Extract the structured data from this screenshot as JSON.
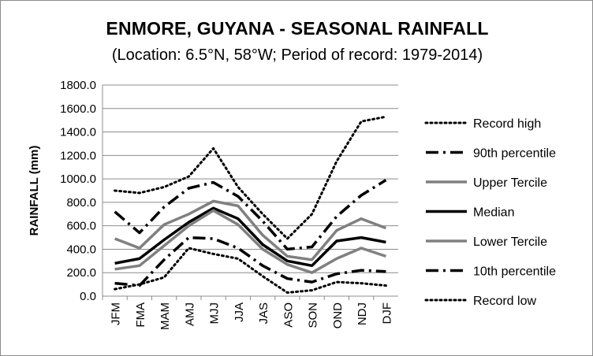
{
  "chart_data": {
    "type": "line",
    "title": "ENMORE, GUYANA - SEASONAL RAINFALL",
    "subtitle": "(Location: 6.5°N, 58°W; Period of record: 1979-2014)",
    "ylabel": "RAINFALL (mm)",
    "xlabel": "",
    "ylim": [
      0,
      1800
    ],
    "ytick_step": 200,
    "ytick_labels": [
      "0.0",
      "200.0",
      "400.0",
      "600.0",
      "800.0",
      "1000.0",
      "1200.0",
      "1400.0",
      "1600.0",
      "1800.0"
    ],
    "categories": [
      "JFM",
      "FMA",
      "MAM",
      "AMJ",
      "MJJ",
      "JJA",
      "JAS",
      "ASO",
      "SON",
      "OND",
      "NDJ",
      "DJF"
    ],
    "grid": true,
    "legend_position": "right",
    "series": [
      {
        "name": "Record high",
        "style": "dot",
        "color": "#000000",
        "values": [
          900,
          880,
          930,
          1020,
          1260,
          930,
          700,
          490,
          700,
          1150,
          1490,
          1530
        ]
      },
      {
        "name": "90th percentile",
        "style": "dashdot",
        "color": "#000000",
        "values": [
          720,
          540,
          760,
          920,
          970,
          850,
          640,
          400,
          420,
          680,
          860,
          990
        ]
      },
      {
        "name": "Upper Tercile",
        "style": "solid",
        "color": "#808080",
        "values": [
          490,
          410,
          610,
          700,
          810,
          770,
          520,
          340,
          310,
          560,
          660,
          580
        ]
      },
      {
        "name": "Median",
        "style": "solid",
        "color": "#000000",
        "values": [
          280,
          320,
          480,
          630,
          750,
          660,
          440,
          300,
          260,
          470,
          500,
          460
        ]
      },
      {
        "name": "Lower Tercile",
        "style": "solid",
        "color": "#808080",
        "values": [
          230,
          260,
          430,
          600,
          730,
          610,
          400,
          270,
          200,
          320,
          410,
          340
        ]
      },
      {
        "name": "10th percentile",
        "style": "dashdot",
        "color": "#000000",
        "values": [
          110,
          90,
          310,
          500,
          490,
          410,
          260,
          150,
          120,
          190,
          220,
          210
        ]
      },
      {
        "name": "Record low",
        "style": "dot",
        "color": "#000000",
        "values": [
          60,
          100,
          160,
          410,
          360,
          320,
          170,
          30,
          50,
          120,
          110,
          90
        ]
      }
    ]
  }
}
